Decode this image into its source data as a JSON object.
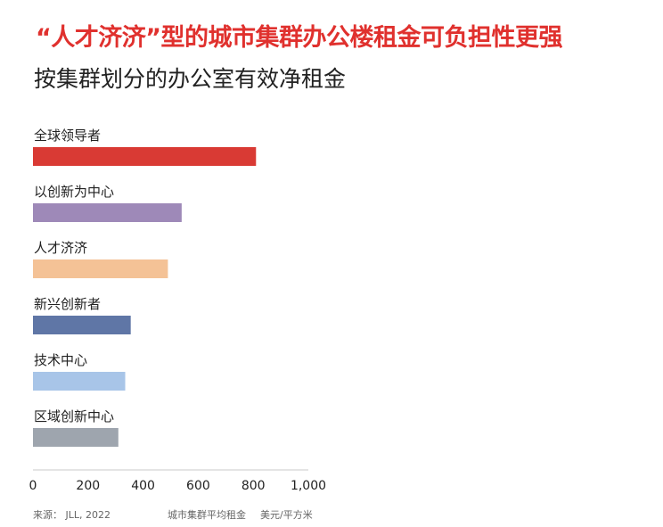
{
  "title": "“人才济济”型的城市集群办公楼租金可负担性更强",
  "subtitle": "按集群划分的办公室有效净租金",
  "footer": {
    "source": "来源： JLL, 2022",
    "xlabel": "城市集群平均租金",
    "unit": "美元/平方米"
  },
  "chart_data": {
    "type": "bar",
    "orientation": "horizontal",
    "title": "按集群划分的办公室有效净租金",
    "xlabel": "城市集群平均租金",
    "unit": "美元/平方米",
    "xlim": [
      0,
      1000
    ],
    "xticks": [
      0,
      200,
      400,
      600,
      800,
      1000
    ],
    "xtick_labels": [
      "0",
      "200",
      "400",
      "600",
      "800",
      "1,000"
    ],
    "grid": false,
    "categories": [
      "全球领导者",
      "以创新为中心",
      "人才济济",
      "新兴创新者",
      "技术中心",
      "区域创新中心"
    ],
    "values": [
      810,
      540,
      490,
      355,
      335,
      310
    ],
    "colors": [
      "#d93a34",
      "#9e89b8",
      "#f4c296",
      "#5f76a6",
      "#a8c5e8",
      "#9ea5ae"
    ]
  }
}
